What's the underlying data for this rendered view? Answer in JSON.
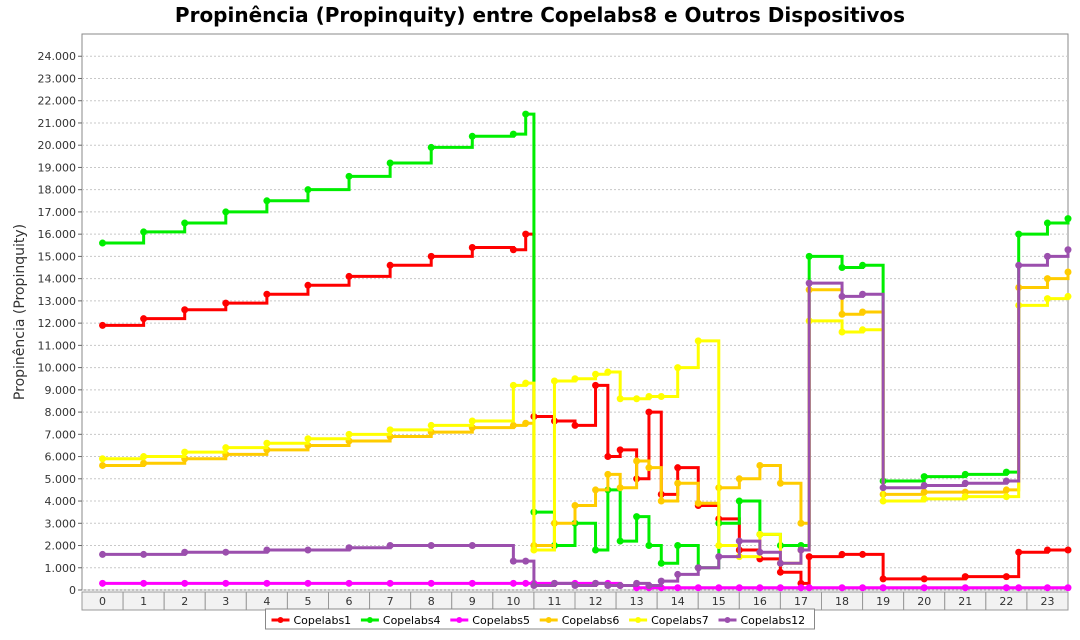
{
  "chart_data": {
    "type": "line",
    "title": "Propinência (Propinquity) entre Copelabs8 e Outros Dispositivos",
    "ylabel": "Propinência (Propinquity)",
    "xlabel": "",
    "categories": [
      "0",
      "1",
      "2",
      "3",
      "4",
      "5",
      "6",
      "7",
      "8",
      "9",
      "10",
      "11",
      "12",
      "13",
      "14",
      "15",
      "16",
      "17",
      "18",
      "19",
      "20",
      "21",
      "22",
      "23"
    ],
    "yticks": [
      "0",
      "1.000",
      "2.000",
      "3.000",
      "4.000",
      "5.000",
      "6.000",
      "7.000",
      "8.000",
      "9.000",
      "10.000",
      "11.000",
      "12.000",
      "13.000",
      "14.000",
      "15.000",
      "16.000",
      "17.000",
      "18.000",
      "19.000",
      "20.000",
      "21.000",
      "22.000",
      "23.000",
      "24.000"
    ],
    "ylim": [
      0,
      25000
    ],
    "grid": true,
    "legend_position": "bottom",
    "series": [
      {
        "name": "Copelabs1",
        "color": "#ff0000",
        "points": [
          [
            0,
            11900
          ],
          [
            1,
            12200
          ],
          [
            2,
            12600
          ],
          [
            3,
            12900
          ],
          [
            4,
            13300
          ],
          [
            5,
            13700
          ],
          [
            6,
            14100
          ],
          [
            7,
            14600
          ],
          [
            8,
            15000
          ],
          [
            9,
            15400
          ],
          [
            10,
            15300
          ],
          [
            10.3,
            16000
          ],
          [
            10.5,
            7800
          ],
          [
            11,
            7600
          ],
          [
            11.5,
            7400
          ],
          [
            12,
            9200
          ],
          [
            12.3,
            6000
          ],
          [
            12.6,
            6300
          ],
          [
            13,
            5000
          ],
          [
            13.3,
            8000
          ],
          [
            13.6,
            4300
          ],
          [
            14,
            5500
          ],
          [
            14.5,
            3800
          ],
          [
            15,
            3200
          ],
          [
            15.5,
            1800
          ],
          [
            16,
            1400
          ],
          [
            16.5,
            800
          ],
          [
            17,
            300
          ],
          [
            17.2,
            1500
          ],
          [
            18,
            1600
          ],
          [
            18.5,
            1600
          ],
          [
            19,
            500
          ],
          [
            20,
            500
          ],
          [
            21,
            600
          ],
          [
            22,
            600
          ],
          [
            22.3,
            1700
          ],
          [
            23,
            1800
          ],
          [
            23.5,
            1800
          ]
        ]
      },
      {
        "name": "Copelabs4",
        "color": "#00ee00",
        "points": [
          [
            0,
            15600
          ],
          [
            1,
            16100
          ],
          [
            2,
            16500
          ],
          [
            3,
            17000
          ],
          [
            4,
            17500
          ],
          [
            5,
            18000
          ],
          [
            6,
            18600
          ],
          [
            7,
            19200
          ],
          [
            8,
            19900
          ],
          [
            9,
            20400
          ],
          [
            10,
            20500
          ],
          [
            10.3,
            21400
          ],
          [
            10.5,
            3500
          ],
          [
            11,
            2000
          ],
          [
            11.5,
            3000
          ],
          [
            12,
            1800
          ],
          [
            12.3,
            4500
          ],
          [
            12.6,
            2200
          ],
          [
            13,
            3300
          ],
          [
            13.3,
            2000
          ],
          [
            13.6,
            1200
          ],
          [
            14,
            2000
          ],
          [
            14.5,
            1000
          ],
          [
            15,
            3000
          ],
          [
            15.5,
            4000
          ],
          [
            16,
            2500
          ],
          [
            16.5,
            2000
          ],
          [
            17,
            2000
          ],
          [
            17.2,
            15000
          ],
          [
            18,
            14500
          ],
          [
            18.5,
            14600
          ],
          [
            19,
            4900
          ],
          [
            20,
            5100
          ],
          [
            21,
            5200
          ],
          [
            22,
            5300
          ],
          [
            22.3,
            16000
          ],
          [
            23,
            16500
          ],
          [
            23.5,
            16700
          ]
        ]
      },
      {
        "name": "Copelabs5",
        "color": "#ff00ff",
        "points": [
          [
            0,
            300
          ],
          [
            1,
            300
          ],
          [
            2,
            300
          ],
          [
            3,
            300
          ],
          [
            4,
            300
          ],
          [
            5,
            300
          ],
          [
            6,
            300
          ],
          [
            7,
            300
          ],
          [
            8,
            300
          ],
          [
            9,
            300
          ],
          [
            10,
            300
          ],
          [
            10.3,
            300
          ],
          [
            10.5,
            300
          ],
          [
            11,
            300
          ],
          [
            11.5,
            300
          ],
          [
            12,
            300
          ],
          [
            12.3,
            300
          ],
          [
            12.6,
            200
          ],
          [
            13,
            100
          ],
          [
            13.3,
            100
          ],
          [
            13.6,
            100
          ],
          [
            14,
            100
          ],
          [
            14.5,
            100
          ],
          [
            15,
            100
          ],
          [
            15.5,
            100
          ],
          [
            16,
            100
          ],
          [
            16.5,
            100
          ],
          [
            17,
            100
          ],
          [
            17.2,
            100
          ],
          [
            18,
            100
          ],
          [
            18.5,
            100
          ],
          [
            19,
            100
          ],
          [
            20,
            100
          ],
          [
            21,
            100
          ],
          [
            22,
            100
          ],
          [
            22.3,
            100
          ],
          [
            23,
            100
          ],
          [
            23.5,
            100
          ]
        ]
      },
      {
        "name": "Copelabs6",
        "color": "#ffcc00",
        "points": [
          [
            0,
            5600
          ],
          [
            1,
            5700
          ],
          [
            2,
            5900
          ],
          [
            3,
            6100
          ],
          [
            4,
            6300
          ],
          [
            5,
            6500
          ],
          [
            6,
            6700
          ],
          [
            7,
            6900
          ],
          [
            8,
            7100
          ],
          [
            9,
            7300
          ],
          [
            10,
            7400
          ],
          [
            10.3,
            7500
          ],
          [
            10.5,
            2000
          ],
          [
            11,
            3000
          ],
          [
            11.5,
            3800
          ],
          [
            12,
            4500
          ],
          [
            12.3,
            5200
          ],
          [
            12.6,
            4600
          ],
          [
            13,
            5800
          ],
          [
            13.3,
            5500
          ],
          [
            13.6,
            4000
          ],
          [
            14,
            4800
          ],
          [
            14.5,
            3900
          ],
          [
            15,
            4600
          ],
          [
            15.5,
            5000
          ],
          [
            16,
            5600
          ],
          [
            16.5,
            4800
          ],
          [
            17,
            3000
          ],
          [
            17.2,
            13500
          ],
          [
            18,
            12400
          ],
          [
            18.5,
            12500
          ],
          [
            19,
            4300
          ],
          [
            20,
            4400
          ],
          [
            21,
            4400
          ],
          [
            22,
            4500
          ],
          [
            22.3,
            13600
          ],
          [
            23,
            14000
          ],
          [
            23.5,
            14300
          ]
        ]
      },
      {
        "name": "Copelabs7",
        "color": "#ffff00",
        "points": [
          [
            0,
            5900
          ],
          [
            1,
            6000
          ],
          [
            2,
            6200
          ],
          [
            3,
            6400
          ],
          [
            4,
            6600
          ],
          [
            5,
            6800
          ],
          [
            6,
            7000
          ],
          [
            7,
            7200
          ],
          [
            8,
            7400
          ],
          [
            9,
            7600
          ],
          [
            10,
            9200
          ],
          [
            10.3,
            9300
          ],
          [
            10.5,
            1800
          ],
          [
            11,
            9400
          ],
          [
            11.5,
            9500
          ],
          [
            12,
            9700
          ],
          [
            12.3,
            9800
          ],
          [
            12.6,
            8600
          ],
          [
            13,
            8600
          ],
          [
            13.3,
            8700
          ],
          [
            13.6,
            8700
          ],
          [
            14,
            10000
          ],
          [
            14.5,
            11200
          ],
          [
            15,
            2000
          ],
          [
            15.5,
            1500
          ],
          [
            16,
            2500
          ],
          [
            16.5,
            1200
          ],
          [
            17,
            1800
          ],
          [
            17.2,
            12100
          ],
          [
            18,
            11600
          ],
          [
            18.5,
            11700
          ],
          [
            19,
            4000
          ],
          [
            20,
            4100
          ],
          [
            21,
            4200
          ],
          [
            22,
            4200
          ],
          [
            22.3,
            12800
          ],
          [
            23,
            13100
          ],
          [
            23.5,
            13200
          ]
        ]
      },
      {
        "name": "Copelabs12",
        "color": "#9b4fad",
        "points": [
          [
            0,
            1600
          ],
          [
            1,
            1600
          ],
          [
            2,
            1700
          ],
          [
            3,
            1700
          ],
          [
            4,
            1800
          ],
          [
            5,
            1800
          ],
          [
            6,
            1900
          ],
          [
            7,
            2000
          ],
          [
            8,
            2000
          ],
          [
            9,
            2000
          ],
          [
            10,
            1300
          ],
          [
            10.3,
            1300
          ],
          [
            10.5,
            200
          ],
          [
            11,
            300
          ],
          [
            11.5,
            200
          ],
          [
            12,
            300
          ],
          [
            12.3,
            200
          ],
          [
            12.6,
            200
          ],
          [
            13,
            300
          ],
          [
            13.3,
            200
          ],
          [
            13.6,
            400
          ],
          [
            14,
            700
          ],
          [
            14.5,
            1000
          ],
          [
            15,
            1500
          ],
          [
            15.5,
            2200
          ],
          [
            16,
            1700
          ],
          [
            16.5,
            1200
          ],
          [
            17,
            1800
          ],
          [
            17.2,
            13800
          ],
          [
            18,
            13200
          ],
          [
            18.5,
            13300
          ],
          [
            19,
            4600
          ],
          [
            20,
            4700
          ],
          [
            21,
            4800
          ],
          [
            22,
            4900
          ],
          [
            22.3,
            14600
          ],
          [
            23,
            15000
          ],
          [
            23.5,
            15300
          ]
        ]
      }
    ]
  }
}
